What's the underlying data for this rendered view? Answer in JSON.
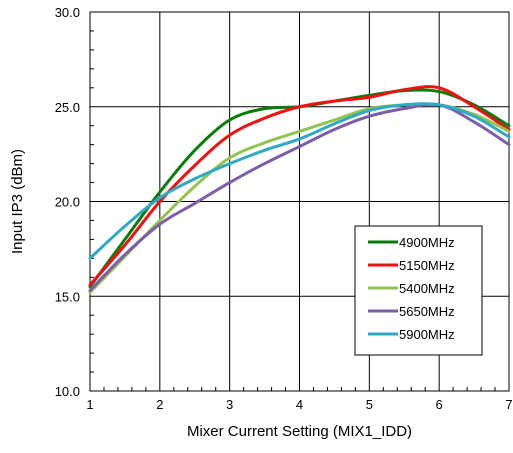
{
  "chart_data": {
    "type": "line",
    "title": "",
    "xlabel": "Mixer Current Setting (MIX1_IDD)",
    "ylabel": "Input IP3 (dBm)",
    "xlim": [
      1,
      7
    ],
    "ylim": [
      10,
      30
    ],
    "x_ticks": [
      "1",
      "2",
      "3",
      "4",
      "5",
      "6",
      "7"
    ],
    "y_ticks": [
      "10.0",
      "15.0",
      "20.0",
      "25.0",
      "30.0"
    ],
    "grid": true,
    "legend_position": "lower-right",
    "series": [
      {
        "name": "4900MHz",
        "color": "#0b7a0b",
        "x": [
          1,
          1.5,
          2,
          2.5,
          3,
          3.5,
          4,
          4.5,
          5,
          5.5,
          6,
          6.5,
          7
        ],
        "y": [
          15.5,
          18.0,
          20.5,
          22.7,
          24.3,
          24.9,
          25.0,
          25.3,
          25.6,
          25.85,
          25.8,
          25.1,
          24.0
        ]
      },
      {
        "name": "5150MHz",
        "color": "#ee1111",
        "x": [
          1,
          1.5,
          2,
          2.5,
          3,
          3.5,
          4,
          4.5,
          5,
          5.5,
          6,
          6.5,
          7
        ],
        "y": [
          15.6,
          17.7,
          20.0,
          21.9,
          23.5,
          24.4,
          25.0,
          25.3,
          25.5,
          25.9,
          26.0,
          25.0,
          23.8
        ]
      },
      {
        "name": "5400MHz",
        "color": "#92c353",
        "x": [
          1,
          1.5,
          2,
          2.5,
          3,
          3.5,
          4,
          4.5,
          5,
          5.5,
          6,
          6.5,
          7
        ],
        "y": [
          15.2,
          17.1,
          19.0,
          20.8,
          22.3,
          23.1,
          23.7,
          24.3,
          24.9,
          25.1,
          25.1,
          24.6,
          23.7
        ]
      },
      {
        "name": "5650MHz",
        "color": "#7b5ea7",
        "x": [
          1,
          1.5,
          2,
          2.5,
          3,
          3.5,
          4,
          4.5,
          5,
          5.5,
          6,
          6.5,
          7
        ],
        "y": [
          15.3,
          17.2,
          18.8,
          19.9,
          21.0,
          22.0,
          22.9,
          23.8,
          24.5,
          24.9,
          25.1,
          24.2,
          23.0
        ]
      },
      {
        "name": "5900MHz",
        "color": "#31a8c4",
        "x": [
          1,
          1.5,
          2,
          2.5,
          3,
          3.5,
          4,
          4.5,
          5,
          5.5,
          6,
          6.5,
          7
        ],
        "y": [
          17.0,
          18.7,
          20.2,
          21.2,
          22.0,
          22.7,
          23.3,
          24.1,
          24.8,
          25.1,
          25.1,
          24.5,
          23.4
        ]
      }
    ]
  }
}
